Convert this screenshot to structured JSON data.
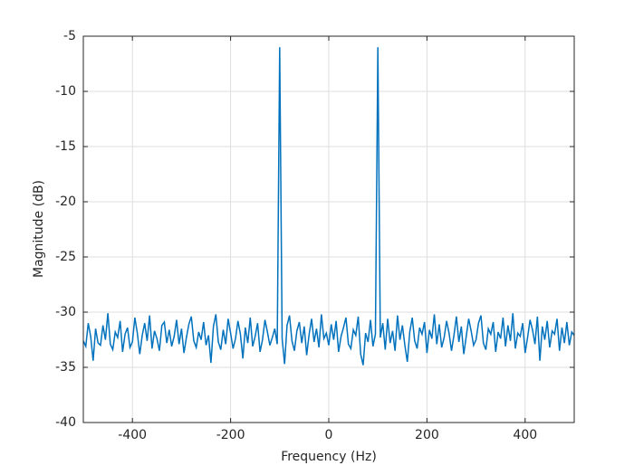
{
  "chart_data": {
    "type": "line",
    "xlabel": "Frequency (Hz)",
    "ylabel": "Magnitude (dB)",
    "xlim": [
      -500,
      500
    ],
    "xticks": [
      -400,
      -200,
      0,
      200,
      400
    ],
    "ylim": [
      -40,
      -5
    ],
    "yticks": [
      -40,
      -35,
      -30,
      -25,
      -20,
      -15,
      -10,
      -5
    ],
    "grid": true,
    "x": [
      -500,
      -495,
      -490,
      -485,
      -480,
      -475,
      -470,
      -465,
      -460,
      -455,
      -450,
      -445,
      -440,
      -435,
      -430,
      -425,
      -420,
      -415,
      -410,
      -405,
      -400,
      -395,
      -390,
      -385,
      -380,
      -375,
      -370,
      -365,
      -360,
      -355,
      -350,
      -345,
      -340,
      -335,
      -330,
      -325,
      -320,
      -315,
      -310,
      -305,
      -300,
      -295,
      -290,
      -285,
      -280,
      -275,
      -270,
      -265,
      -260,
      -255,
      -250,
      -245,
      -240,
      -235,
      -230,
      -225,
      -220,
      -215,
      -210,
      -205,
      -200,
      -195,
      -190,
      -185,
      -180,
      -175,
      -170,
      -165,
      -160,
      -155,
      -150,
      -145,
      -140,
      -135,
      -130,
      -125,
      -120,
      -115,
      -110,
      -105,
      -100,
      -95,
      -90,
      -85,
      -80,
      -75,
      -70,
      -65,
      -60,
      -55,
      -50,
      -45,
      -40,
      -35,
      -30,
      -25,
      -20,
      -15,
      -10,
      -5,
      0,
      5,
      10,
      15,
      20,
      25,
      30,
      35,
      40,
      45,
      50,
      55,
      60,
      65,
      70,
      75,
      80,
      85,
      90,
      95,
      100,
      105,
      110,
      115,
      120,
      125,
      130,
      135,
      140,
      145,
      150,
      155,
      160,
      165,
      170,
      175,
      180,
      185,
      190,
      195,
      200,
      205,
      210,
      215,
      220,
      225,
      230,
      235,
      240,
      245,
      250,
      255,
      260,
      265,
      270,
      275,
      280,
      285,
      290,
      295,
      300,
      305,
      310,
      315,
      320,
      325,
      330,
      335,
      340,
      345,
      350,
      355,
      360,
      365,
      370,
      375,
      380,
      385,
      390,
      395,
      400,
      405,
      410,
      415,
      420,
      425,
      430,
      435,
      440,
      445,
      450,
      455,
      460,
      465,
      470,
      475,
      480,
      485,
      490,
      495,
      500
    ],
    "series": [
      {
        "color": "#0072bd",
        "values": [
          -32.6,
          -33.1,
          -31.0,
          -32.2,
          -34.4,
          -31.5,
          -32.8,
          -33.0,
          -31.2,
          -32.5,
          -30.1,
          -32.9,
          -33.4,
          -31.8,
          -32.3,
          -30.8,
          -33.6,
          -32.0,
          -31.4,
          -33.2,
          -32.7,
          -30.5,
          -31.9,
          -33.8,
          -32.1,
          -31.0,
          -32.6,
          -30.3,
          -33.3,
          -31.7,
          -32.4,
          -33.5,
          -31.2,
          -30.9,
          -32.8,
          -31.6,
          -33.1,
          -32.2,
          -30.7,
          -32.9,
          -31.5,
          -33.7,
          -32.3,
          -31.1,
          -30.4,
          -32.6,
          -33.2,
          -31.8,
          -32.5,
          -30.9,
          -33.0,
          -32.1,
          -34.6,
          -31.3,
          -30.2,
          -32.7,
          -33.4,
          -31.6,
          -32.9,
          -30.6,
          -31.9,
          -33.3,
          -32.4,
          -30.8,
          -32.0,
          -34.2,
          -31.4,
          -32.8,
          -30.5,
          -33.1,
          -32.2,
          -31.0,
          -33.6,
          -32.5,
          -30.7,
          -31.8,
          -33.0,
          -32.3,
          -31.5,
          -32.9,
          -6.0,
          -32.4,
          -34.7,
          -31.2,
          -30.3,
          -32.6,
          -33.5,
          -31.7,
          -30.9,
          -32.8,
          -31.3,
          -33.9,
          -32.0,
          -30.6,
          -32.7,
          -31.5,
          -33.2,
          -30.2,
          -32.4,
          -31.9,
          -33.0,
          -31.1,
          -32.5,
          -30.8,
          -33.6,
          -32.2,
          -31.4,
          -30.5,
          -32.9,
          -33.3,
          -31.6,
          -32.1,
          -30.4,
          -33.8,
          -34.8,
          -31.9,
          -32.7,
          -30.7,
          -33.1,
          -32.0,
          -6.0,
          -32.3,
          -31.0,
          -33.4,
          -30.6,
          -32.8,
          -31.7,
          -33.5,
          -30.3,
          -32.5,
          -31.2,
          -33.0,
          -34.5,
          -31.8,
          -30.5,
          -32.6,
          -33.3,
          -31.4,
          -32.0,
          -30.9,
          -33.7,
          -31.6,
          -32.4,
          -30.2,
          -32.9,
          -31.1,
          -33.2,
          -32.3,
          -30.8,
          -31.9,
          -33.5,
          -32.1,
          -30.4,
          -32.7,
          -31.3,
          -33.8,
          -32.2,
          -30.6,
          -31.7,
          -33.0,
          -32.5,
          -31.0,
          -30.3,
          -32.8,
          -33.4,
          -31.5,
          -32.0,
          -30.9,
          -33.6,
          -31.8,
          -32.4,
          -30.5,
          -33.1,
          -31.2,
          -32.6,
          -30.1,
          -33.3,
          -31.9,
          -32.2,
          -31.0,
          -33.7,
          -32.3,
          -30.7,
          -31.6,
          -32.9,
          -30.4,
          -34.4,
          -31.3,
          -32.5,
          -30.8,
          -33.2,
          -31.7,
          -32.0,
          -30.6,
          -33.5,
          -31.4,
          -32.8,
          -30.9,
          -33.0,
          -31.8,
          -32.1
        ]
      }
    ]
  }
}
